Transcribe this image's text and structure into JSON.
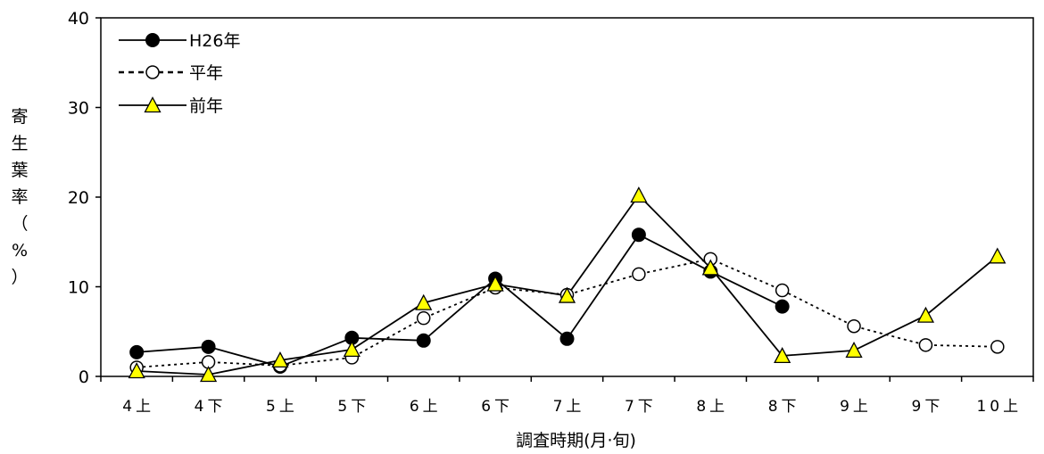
{
  "chart_data": {
    "type": "line",
    "title": "",
    "xlabel": "調査時期(月·旬)",
    "ylabel_chars": [
      "寄",
      "生",
      "葉",
      "率",
      "（",
      "%",
      "）"
    ],
    "ylim": [
      0,
      40
    ],
    "yticks": [
      0,
      10,
      20,
      30,
      40
    ],
    "categories": [
      "4上",
      "4下",
      "5上",
      "5下",
      "6上",
      "6下",
      "7上",
      "7下",
      "8上",
      "8下",
      "9上",
      "9下",
      "10上"
    ],
    "legend_position": "top-left",
    "series": [
      {
        "name": "H26年",
        "style": "solid",
        "marker": "filled-circle",
        "color": "#000000",
        "values": [
          2.7,
          3.3,
          1.1,
          4.3,
          4.0,
          10.9,
          4.2,
          15.8,
          11.7,
          7.8,
          null,
          null,
          null
        ]
      },
      {
        "name": "平年",
        "style": "dotted",
        "marker": "open-circle",
        "color": "#000000",
        "values": [
          1.0,
          1.6,
          1.2,
          2.1,
          6.5,
          9.9,
          9.1,
          11.4,
          13.1,
          9.6,
          5.6,
          3.5,
          3.3
        ]
      },
      {
        "name": "前年",
        "style": "solid",
        "marker": "triangle",
        "color": "#000000",
        "marker_fill": "#ffff00",
        "values": [
          0.6,
          0.2,
          1.8,
          3.0,
          8.2,
          10.3,
          9.0,
          20.2,
          12.1,
          2.3,
          2.9,
          6.8,
          13.4
        ]
      }
    ]
  }
}
